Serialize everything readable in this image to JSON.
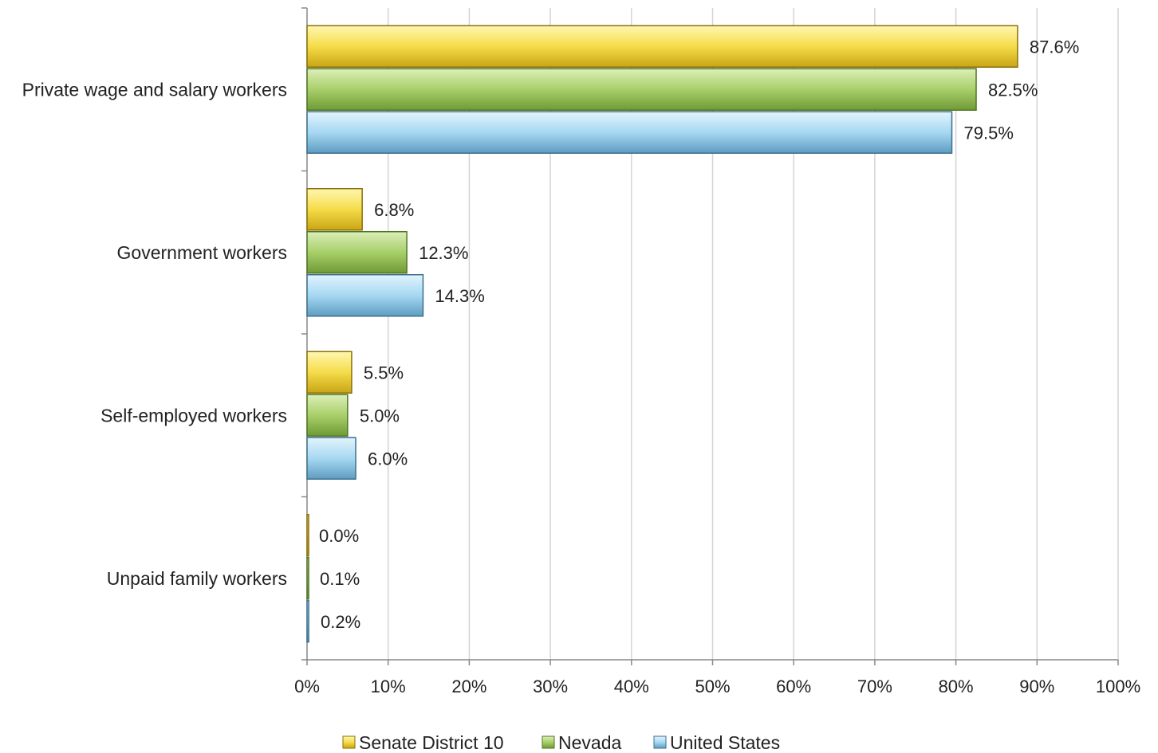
{
  "chart_data": {
    "type": "bar",
    "orientation": "horizontal",
    "categories": [
      "Private wage and salary workers",
      "Government workers",
      "Self-employed workers",
      "Unpaid family workers"
    ],
    "series": [
      {
        "name": "Senate District 10",
        "values": [
          87.6,
          6.8,
          5.5,
          0.0
        ],
        "labels": [
          "87.6%",
          "6.8%",
          "5.5%",
          "0.0%"
        ],
        "color": "#f5dc4a"
      },
      {
        "name": "Nevada",
        "values": [
          82.5,
          12.3,
          5.0,
          0.1
        ],
        "labels": [
          "82.5%",
          "12.3%",
          "5.0%",
          "0.1%"
        ],
        "color": "#a8cf6a"
      },
      {
        "name": "United States",
        "values": [
          79.5,
          14.3,
          6.0,
          0.2
        ],
        "labels": [
          "79.5%",
          "14.3%",
          "6.0%",
          "0.2%"
        ],
        "color": "#a6d8f2"
      }
    ],
    "x_ticks": [
      "0%",
      "10%",
      "20%",
      "30%",
      "40%",
      "50%",
      "60%",
      "70%",
      "80%",
      "90%",
      "100%"
    ],
    "xlim": [
      0,
      100
    ],
    "grid": true,
    "legend_position": "bottom",
    "title": "",
    "xlabel": "",
    "ylabel": ""
  }
}
